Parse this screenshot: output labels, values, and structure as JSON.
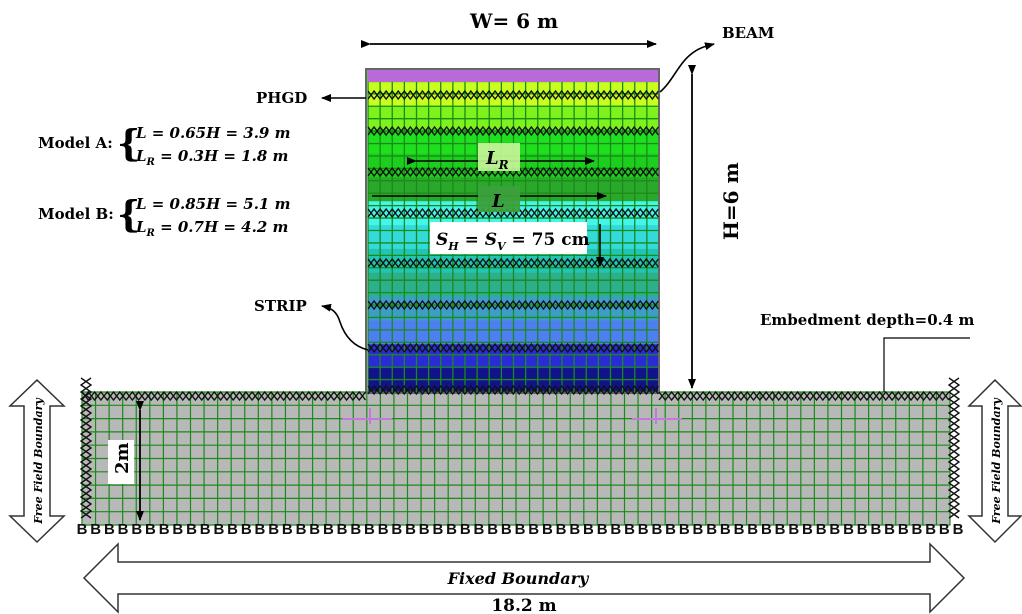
{
  "labels": {
    "width": "W= 6 m",
    "beam": "BEAM",
    "phgd": "PHGD",
    "height": "H=6 m",
    "strip": "STRIP",
    "embedment": "Embedment depth=0.4 m",
    "foundation_depth": "2m",
    "spacing": "S",
    "spacing_sub_h": "H",
    "spacing_eq": " = S",
    "spacing_sub_v": "V",
    "spacing_val": " = 75 cm",
    "l_reinf": "L",
    "l_r": "L",
    "l_r_sub": "R",
    "left_boundary": "Free Field Boundary",
    "right_boundary": "Free Field Boundary",
    "bottom_boundary": "Fixed Boundary",
    "total_width": "18.2 m"
  },
  "models": [
    {
      "name": "Model A:",
      "line1": {
        "var": "L",
        "sub": "",
        "expr": " = 0.65H = 3.9 m"
      },
      "line2": {
        "var": "L",
        "sub": "R",
        "expr": " = 0.3H = 1.8 m"
      }
    },
    {
      "name": "Model B:",
      "line1": {
        "var": "L",
        "sub": "",
        "expr": " = 0.85H = 5.1 m"
      },
      "line2": {
        "var": "L",
        "sub": "R",
        "expr": " = 0.7H = 4.2 m"
      }
    }
  ],
  "colors": {
    "mesh": "#1a8a1a",
    "foundation": "#b8b8b8",
    "wall_layers": [
      "#c9ff1f",
      "#7df21c",
      "#1fe01f",
      "#1ccf1c",
      "#2aa82a",
      "#44f5ea",
      "#33dada",
      "#22c4b4",
      "#2cb08c",
      "#3c9ec8",
      "#4e7ff2",
      "#2a2ad6",
      "#12128a"
    ]
  }
}
